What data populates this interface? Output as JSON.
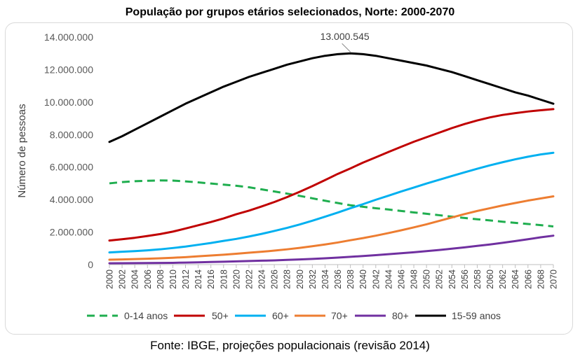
{
  "chart_data": {
    "type": "line",
    "title": "População por grupos etários selecionados, Norte: 2000-2070",
    "ylabel": "Número de pessoas",
    "xlabel": "",
    "x": [
      2000,
      2070
    ],
    "xlim": [
      2000,
      2070
    ],
    "ylim": [
      0,
      14000000
    ],
    "y_ticks": [
      "0",
      "2.000.000",
      "4.000.000",
      "6.000.000",
      "8.000.000",
      "10.000.000",
      "12.000.000",
      "14.000.000"
    ],
    "x_ticks": [
      "2000",
      "2002",
      "2004",
      "2006",
      "2008",
      "2010",
      "2012",
      "2014",
      "2016",
      "2018",
      "2020",
      "2022",
      "2024",
      "2026",
      "2028",
      "2030",
      "2032",
      "2034",
      "2036",
      "2038",
      "2040",
      "2042",
      "2044",
      "2046",
      "2048",
      "2050",
      "2052",
      "2054",
      "2056",
      "2058",
      "2060",
      "2062",
      "2064",
      "2066",
      "2068",
      "2070"
    ],
    "grid": false,
    "legend": "bottom",
    "annotation": {
      "text": "13.000.545",
      "x": 2038,
      "y": 13000545
    },
    "series": [
      {
        "name": "0-14 anos",
        "color": "#1fae4f",
        "dash": true,
        "points": [
          [
            2000,
            5000000
          ],
          [
            2002,
            5080000
          ],
          [
            2004,
            5130000
          ],
          [
            2006,
            5160000
          ],
          [
            2008,
            5180000
          ],
          [
            2010,
            5170000
          ],
          [
            2012,
            5120000
          ],
          [
            2014,
            5060000
          ],
          [
            2016,
            4990000
          ],
          [
            2018,
            4920000
          ],
          [
            2020,
            4850000
          ],
          [
            2022,
            4760000
          ],
          [
            2024,
            4630000
          ],
          [
            2026,
            4500000
          ],
          [
            2028,
            4370000
          ],
          [
            2030,
            4230000
          ],
          [
            2032,
            4080000
          ],
          [
            2034,
            3930000
          ],
          [
            2036,
            3790000
          ],
          [
            2038,
            3650000
          ],
          [
            2040,
            3560000
          ],
          [
            2042,
            3470000
          ],
          [
            2044,
            3390000
          ],
          [
            2046,
            3300000
          ],
          [
            2048,
            3210000
          ],
          [
            2050,
            3130000
          ],
          [
            2052,
            3040000
          ],
          [
            2054,
            2950000
          ],
          [
            2056,
            2870000
          ],
          [
            2058,
            2790000
          ],
          [
            2060,
            2720000
          ],
          [
            2062,
            2640000
          ],
          [
            2064,
            2570000
          ],
          [
            2066,
            2500000
          ],
          [
            2068,
            2430000
          ],
          [
            2070,
            2350000
          ]
        ]
      },
      {
        "name": "50+",
        "color": "#c00000",
        "dash": false,
        "points": [
          [
            2000,
            1480000
          ],
          [
            2002,
            1560000
          ],
          [
            2004,
            1650000
          ],
          [
            2006,
            1760000
          ],
          [
            2008,
            1880000
          ],
          [
            2010,
            2030000
          ],
          [
            2012,
            2220000
          ],
          [
            2014,
            2420000
          ],
          [
            2016,
            2620000
          ],
          [
            2018,
            2840000
          ],
          [
            2020,
            3100000
          ],
          [
            2022,
            3320000
          ],
          [
            2024,
            3580000
          ],
          [
            2026,
            3850000
          ],
          [
            2028,
            4150000
          ],
          [
            2030,
            4480000
          ],
          [
            2032,
            4830000
          ],
          [
            2034,
            5200000
          ],
          [
            2036,
            5580000
          ],
          [
            2038,
            5920000
          ],
          [
            2040,
            6280000
          ],
          [
            2042,
            6600000
          ],
          [
            2044,
            6930000
          ],
          [
            2046,
            7250000
          ],
          [
            2048,
            7560000
          ],
          [
            2050,
            7840000
          ],
          [
            2052,
            8120000
          ],
          [
            2054,
            8400000
          ],
          [
            2056,
            8650000
          ],
          [
            2058,
            8870000
          ],
          [
            2060,
            9060000
          ],
          [
            2062,
            9210000
          ],
          [
            2064,
            9320000
          ],
          [
            2066,
            9420000
          ],
          [
            2068,
            9500000
          ],
          [
            2070,
            9570000
          ]
        ]
      },
      {
        "name": "60+",
        "color": "#00b0f0",
        "dash": false,
        "points": [
          [
            2000,
            750000
          ],
          [
            2002,
            790000
          ],
          [
            2004,
            830000
          ],
          [
            2006,
            880000
          ],
          [
            2008,
            940000
          ],
          [
            2010,
            1020000
          ],
          [
            2012,
            1110000
          ],
          [
            2014,
            1220000
          ],
          [
            2016,
            1330000
          ],
          [
            2018,
            1460000
          ],
          [
            2020,
            1580000
          ],
          [
            2022,
            1730000
          ],
          [
            2024,
            1890000
          ],
          [
            2026,
            2070000
          ],
          [
            2028,
            2260000
          ],
          [
            2030,
            2470000
          ],
          [
            2032,
            2700000
          ],
          [
            2034,
            2950000
          ],
          [
            2036,
            3200000
          ],
          [
            2038,
            3470000
          ],
          [
            2040,
            3720000
          ],
          [
            2042,
            3990000
          ],
          [
            2044,
            4240000
          ],
          [
            2046,
            4500000
          ],
          [
            2048,
            4740000
          ],
          [
            2050,
            4990000
          ],
          [
            2052,
            5220000
          ],
          [
            2054,
            5450000
          ],
          [
            2056,
            5680000
          ],
          [
            2058,
            5900000
          ],
          [
            2060,
            6110000
          ],
          [
            2062,
            6300000
          ],
          [
            2064,
            6480000
          ],
          [
            2066,
            6640000
          ],
          [
            2068,
            6780000
          ],
          [
            2070,
            6880000
          ]
        ]
      },
      {
        "name": "70+",
        "color": "#ed7d31",
        "dash": false,
        "points": [
          [
            2000,
            300000
          ],
          [
            2002,
            320000
          ],
          [
            2004,
            340000
          ],
          [
            2006,
            360000
          ],
          [
            2008,
            390000
          ],
          [
            2010,
            420000
          ],
          [
            2012,
            460000
          ],
          [
            2014,
            510000
          ],
          [
            2016,
            560000
          ],
          [
            2018,
            610000
          ],
          [
            2020,
            670000
          ],
          [
            2022,
            730000
          ],
          [
            2024,
            790000
          ],
          [
            2026,
            860000
          ],
          [
            2028,
            940000
          ],
          [
            2030,
            1030000
          ],
          [
            2032,
            1130000
          ],
          [
            2034,
            1240000
          ],
          [
            2036,
            1360000
          ],
          [
            2038,
            1500000
          ],
          [
            2040,
            1630000
          ],
          [
            2042,
            1780000
          ],
          [
            2044,
            1940000
          ],
          [
            2046,
            2110000
          ],
          [
            2048,
            2290000
          ],
          [
            2050,
            2480000
          ],
          [
            2052,
            2690000
          ],
          [
            2054,
            2900000
          ],
          [
            2056,
            3110000
          ],
          [
            2058,
            3300000
          ],
          [
            2060,
            3470000
          ],
          [
            2062,
            3640000
          ],
          [
            2064,
            3790000
          ],
          [
            2066,
            3940000
          ],
          [
            2068,
            4070000
          ],
          [
            2070,
            4200000
          ]
        ]
      },
      {
        "name": "80+",
        "color": "#7030a0",
        "dash": false,
        "points": [
          [
            2000,
            80000
          ],
          [
            2002,
            85000
          ],
          [
            2004,
            90000
          ],
          [
            2006,
            95000
          ],
          [
            2008,
            100000
          ],
          [
            2010,
            110000
          ],
          [
            2012,
            125000
          ],
          [
            2014,
            140000
          ],
          [
            2016,
            160000
          ],
          [
            2018,
            180000
          ],
          [
            2020,
            200000
          ],
          [
            2022,
            220000
          ],
          [
            2024,
            240000
          ],
          [
            2026,
            260000
          ],
          [
            2028,
            290000
          ],
          [
            2030,
            320000
          ],
          [
            2032,
            350000
          ],
          [
            2034,
            390000
          ],
          [
            2036,
            430000
          ],
          [
            2038,
            480000
          ],
          [
            2040,
            530000
          ],
          [
            2042,
            580000
          ],
          [
            2044,
            640000
          ],
          [
            2046,
            700000
          ],
          [
            2048,
            760000
          ],
          [
            2050,
            830000
          ],
          [
            2052,
            900000
          ],
          [
            2054,
            980000
          ],
          [
            2056,
            1060000
          ],
          [
            2058,
            1150000
          ],
          [
            2060,
            1240000
          ],
          [
            2062,
            1340000
          ],
          [
            2064,
            1450000
          ],
          [
            2066,
            1560000
          ],
          [
            2068,
            1680000
          ],
          [
            2070,
            1780000
          ]
        ]
      },
      {
        "name": "15-59 anos",
        "color": "#000000",
        "dash": false,
        "points": [
          [
            2000,
            7550000
          ],
          [
            2002,
            7900000
          ],
          [
            2004,
            8300000
          ],
          [
            2006,
            8700000
          ],
          [
            2008,
            9100000
          ],
          [
            2010,
            9500000
          ],
          [
            2012,
            9900000
          ],
          [
            2014,
            10250000
          ],
          [
            2016,
            10600000
          ],
          [
            2018,
            10950000
          ],
          [
            2020,
            11250000
          ],
          [
            2022,
            11550000
          ],
          [
            2024,
            11800000
          ],
          [
            2026,
            12050000
          ],
          [
            2028,
            12300000
          ],
          [
            2030,
            12500000
          ],
          [
            2032,
            12700000
          ],
          [
            2034,
            12850000
          ],
          [
            2036,
            12950000
          ],
          [
            2038,
            13000545
          ],
          [
            2040,
            12950000
          ],
          [
            2042,
            12850000
          ],
          [
            2044,
            12700000
          ],
          [
            2046,
            12550000
          ],
          [
            2048,
            12400000
          ],
          [
            2050,
            12250000
          ],
          [
            2052,
            12050000
          ],
          [
            2054,
            11850000
          ],
          [
            2056,
            11600000
          ],
          [
            2058,
            11350000
          ],
          [
            2060,
            11100000
          ],
          [
            2062,
            10850000
          ],
          [
            2064,
            10600000
          ],
          [
            2066,
            10400000
          ],
          [
            2068,
            10150000
          ],
          [
            2070,
            9900000
          ]
        ]
      }
    ]
  },
  "source": "Fonte: IBGE, projeções populacionais (revisão 2014)"
}
